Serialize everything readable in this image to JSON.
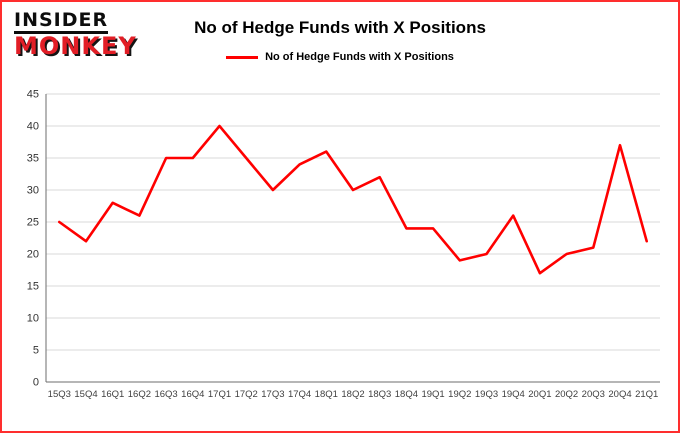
{
  "logo": {
    "line1": "INSIDER",
    "line2": "MONKEY"
  },
  "title": "No of Hedge Funds with X Positions",
  "legend": {
    "label": "No of Hedge Funds with X Positions",
    "color": "#ff0000"
  },
  "chart_data": {
    "type": "line",
    "title": "No of Hedge Funds with X Positions",
    "series_name": "No of Hedge Funds with X Positions",
    "categories": [
      "15Q3",
      "15Q4",
      "16Q1",
      "16Q2",
      "16Q3",
      "16Q4",
      "17Q1",
      "17Q2",
      "17Q3",
      "17Q4",
      "18Q1",
      "18Q2",
      "18Q3",
      "18Q4",
      "19Q1",
      "19Q2",
      "19Q3",
      "19Q4",
      "20Q1",
      "20Q2",
      "20Q3",
      "20Q4",
      "21Q1"
    ],
    "values": [
      25,
      22,
      28,
      26,
      35,
      35,
      40,
      35,
      30,
      34,
      36,
      30,
      32,
      24,
      24,
      19,
      20,
      26,
      17,
      20,
      21,
      37,
      22
    ],
    "line_color": "#ff0000",
    "ylim": [
      0,
      45
    ],
    "ytick_step": 5,
    "grid": true,
    "legend_position": "top",
    "border_color": "#fe2e2e"
  }
}
